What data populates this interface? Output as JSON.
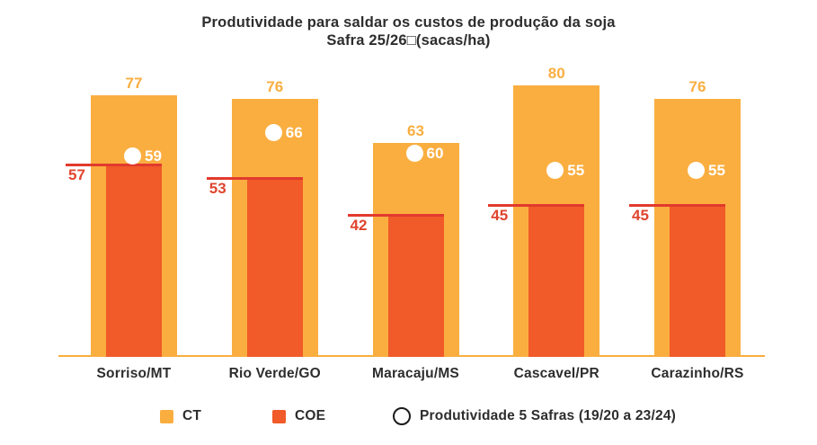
{
  "colors": {
    "ct": "#FAAE40",
    "coe": "#F15A29",
    "marker_line": "#E23A2D",
    "coe_label": "#E0452F",
    "text": "#2D2D2D",
    "marker_fill": "#FFFFFF",
    "legend_ring": "#1B1B1B"
  },
  "chart_data": {
    "type": "bar",
    "title": "Produtividade para saldar os custos de produção da soja",
    "subtitle": "Safra 25/26□(sacas/ha)",
    "categories": [
      "Sorriso/MT",
      "Rio Verde/GO",
      "Maracaju/MS",
      "Cascavel/PR",
      "Carazinho/RS"
    ],
    "series": [
      {
        "name": "CT",
        "type": "bar",
        "color": "#FAAE40",
        "values": [
          77,
          76,
          63,
          80,
          76
        ]
      },
      {
        "name": "COE",
        "type": "bar-overlay",
        "color": "#F15A29",
        "values": [
          57,
          53,
          42,
          45,
          45
        ]
      },
      {
        "name": "Produtividade 5 Safras (19/20 a 23/24)",
        "type": "point",
        "color": "#FFFFFF",
        "values": [
          59,
          66,
          60,
          55,
          55
        ]
      }
    ],
    "ylabel": "sacas/ha",
    "ylim": [
      0,
      90
    ],
    "grid": false,
    "legend_position": "bottom"
  }
}
